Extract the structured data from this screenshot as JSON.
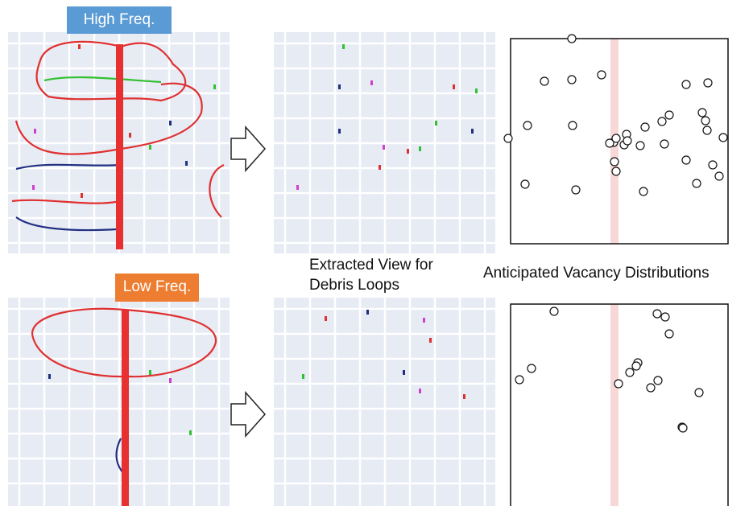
{
  "labels": {
    "high_freq": "High Freq.",
    "low_freq": "Low Freq."
  },
  "extracted_view": [
    "Extracted View for",
    "Debris Loops"
  ],
  "distribution_title": "Anticipated Vacancy Distributions"
}
